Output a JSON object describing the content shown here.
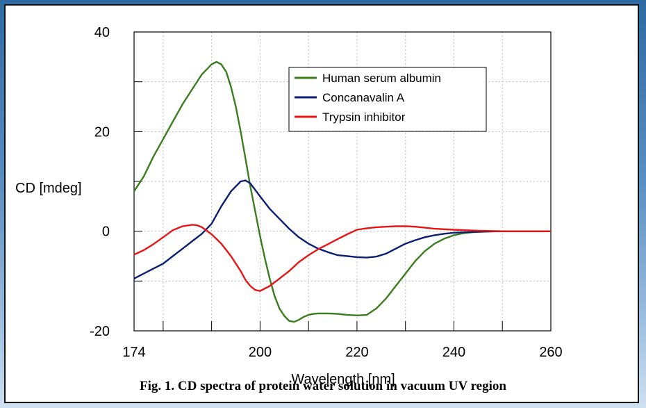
{
  "caption": "Fig. 1. CD spectra of protein water solution in vacuum UV region",
  "chart_data": {
    "type": "line",
    "xlabel": "Wavelength [nm]",
    "ylabel": "CD [mdeg]",
    "xlim": [
      174,
      260
    ],
    "ylim": [
      -20,
      40
    ],
    "xticks": [
      174,
      200,
      220,
      240,
      260
    ],
    "yticks": [
      -20,
      0,
      20,
      40
    ],
    "grid": true,
    "legend_position": "top-right",
    "series": [
      {
        "name": "Human serum albumin",
        "color": "#3a7d1e",
        "x": [
          174,
          176,
          178,
          180,
          182,
          184,
          186,
          188,
          190,
          191,
          192,
          193,
          194,
          195,
          196,
          197,
          198,
          199,
          200,
          201,
          202,
          203,
          204,
          205,
          206,
          207,
          208,
          209,
          210,
          211,
          212,
          214,
          216,
          218,
          220,
          222,
          224,
          226,
          228,
          230,
          232,
          234,
          236,
          238,
          240,
          242,
          244,
          246,
          248,
          250,
          255,
          260
        ],
        "y": [
          8,
          11,
          15,
          18.5,
          22,
          25.5,
          28.5,
          31.5,
          33.5,
          34,
          33.5,
          32,
          29,
          25,
          20,
          14.5,
          9,
          4,
          -1,
          -5.5,
          -9.5,
          -13,
          -15.5,
          -17,
          -18,
          -18.2,
          -17.8,
          -17.2,
          -16.8,
          -16.6,
          -16.5,
          -16.5,
          -16.6,
          -16.8,
          -16.9,
          -16.8,
          -15.5,
          -13.5,
          -11,
          -8.5,
          -6,
          -4,
          -2.5,
          -1.5,
          -0.8,
          -0.4,
          -0.2,
          -0.1,
          0,
          0,
          0,
          0
        ]
      },
      {
        "name": "Concanavalin A",
        "color": "#0a1f73",
        "x": [
          174,
          176,
          178,
          180,
          182,
          184,
          186,
          188,
          190,
          192,
          194,
          196,
          197,
          198,
          199,
          200,
          202,
          204,
          206,
          208,
          210,
          212,
          214,
          216,
          218,
          220,
          222,
          224,
          226,
          228,
          230,
          232,
          234,
          236,
          238,
          240,
          245,
          250,
          255,
          260
        ],
        "y": [
          -9.5,
          -8.5,
          -7.5,
          -6.5,
          -5,
          -3.5,
          -2,
          -0.5,
          1.5,
          5,
          8,
          10,
          10.2,
          9.6,
          8.3,
          7,
          4.5,
          2.5,
          0.5,
          -1.2,
          -2.5,
          -3.5,
          -4.2,
          -4.8,
          -5,
          -5.2,
          -5.3,
          -5.1,
          -4.5,
          -3.5,
          -2.5,
          -1.8,
          -1.2,
          -0.8,
          -0.5,
          -0.3,
          -0.1,
          0,
          0,
          0
        ]
      },
      {
        "name": "Trypsin inhibitor",
        "color": "#e81515",
        "x": [
          174,
          176,
          178,
          180,
          182,
          184,
          186,
          187,
          188,
          190,
          192,
          194,
          196,
          197,
          198,
          199,
          200,
          202,
          204,
          206,
          208,
          210,
          212,
          214,
          216,
          218,
          220,
          222,
          224,
          226,
          228,
          230,
          232,
          234,
          236,
          238,
          240,
          245,
          250,
          255,
          260
        ],
        "y": [
          -4.7,
          -3.8,
          -2.6,
          -1.2,
          0.2,
          1,
          1.3,
          1.2,
          0.8,
          -0.6,
          -2.5,
          -5,
          -8,
          -9.8,
          -11,
          -11.8,
          -12,
          -11,
          -9.5,
          -8,
          -6.2,
          -4.8,
          -3.6,
          -2.6,
          -1.6,
          -0.6,
          0.3,
          0.6,
          0.8,
          0.9,
          1,
          1,
          0.9,
          0.7,
          0.5,
          0.4,
          0.3,
          0.1,
          0,
          0,
          0
        ]
      }
    ]
  }
}
